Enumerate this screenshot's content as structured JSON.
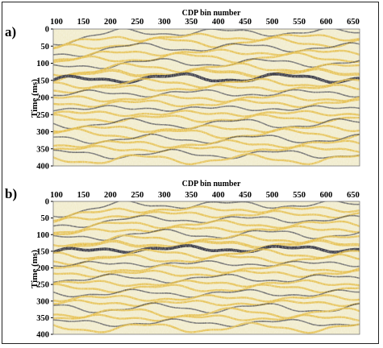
{
  "figure": {
    "panels": [
      {
        "id": "a",
        "label": "a)",
        "xlabel": "CDP bin number",
        "ylabel": "Time (ms)",
        "x_ticks": [
          "100",
          "150",
          "200",
          "250",
          "300",
          "350",
          "400",
          "450",
          "500",
          "550",
          "600",
          "650"
        ],
        "y_ticks": [
          "0",
          "50",
          "100",
          "150",
          "200",
          "250",
          "300",
          "350",
          "400"
        ]
      },
      {
        "id": "b",
        "label": "b)",
        "xlabel": "CDP bin number",
        "ylabel": "Time (ms)",
        "x_ticks": [
          "100",
          "150",
          "200",
          "250",
          "300",
          "350",
          "400",
          "450",
          "500",
          "550",
          "600",
          "650"
        ],
        "y_ticks": [
          "0",
          "50",
          "100",
          "150",
          "200",
          "250",
          "300",
          "350",
          "400"
        ]
      }
    ]
  },
  "colors": {
    "background": "#f1eccd",
    "positive": "#e3b93c",
    "negative": "#2a2c3c",
    "frame": "#222222"
  }
}
